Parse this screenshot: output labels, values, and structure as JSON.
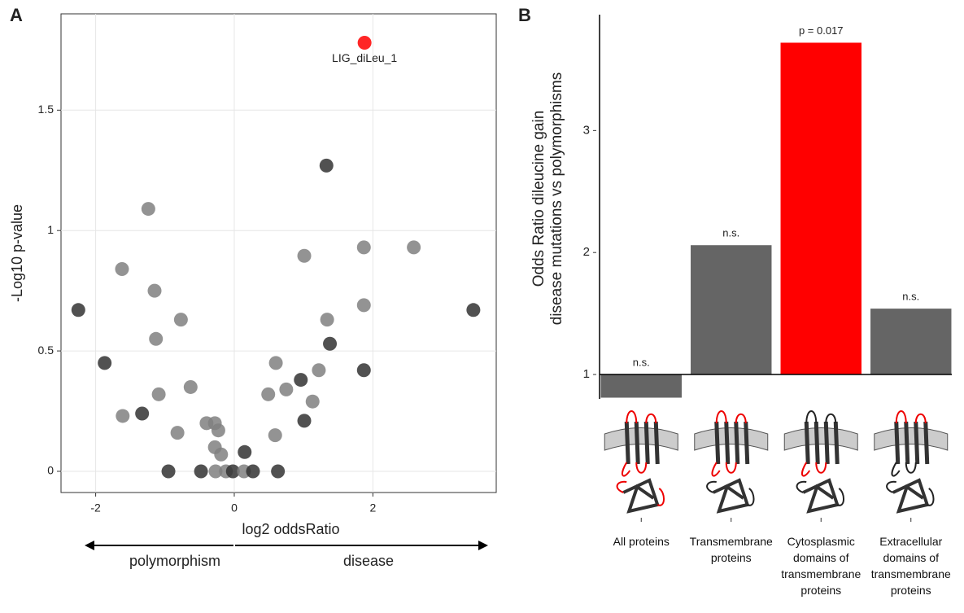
{
  "chart_data": [
    {
      "type": "scatter",
      "panel": "A",
      "xlabel": "log2 oddsRatio",
      "ylabel": "-Log10 p-value",
      "annotation": "LIG_diLeu_1",
      "arrow_left": "polymorphism",
      "arrow_right": "disease",
      "x": [
        1.88,
        1.33,
        -1.24,
        1.01,
        1.87,
        2.59,
        -1.62,
        -1.15,
        1.87,
        -2.25,
        3.45,
        -0.77,
        1.34,
        -1.13,
        1.38,
        -1.87,
        0.6,
        1.87,
        1.22,
        0.96,
        -0.63,
        0.75,
        0.49,
        -1.09,
        1.13,
        -1.61,
        -1.33,
        1.01,
        -0.4,
        -0.28,
        -0.23,
        -0.82,
        0.59,
        -0.28,
        -0.19,
        0.15,
        -0.95,
        -0.48,
        -0.27,
        -0.12,
        -0.02,
        0.14,
        0.27,
        0.63
      ],
      "y": [
        1.78,
        1.27,
        1.09,
        0.895,
        0.93,
        0.93,
        0.84,
        0.75,
        0.69,
        0.67,
        0.67,
        0.63,
        0.63,
        0.55,
        0.53,
        0.45,
        0.45,
        0.42,
        0.42,
        0.38,
        0.35,
        0.34,
        0.32,
        0.32,
        0.29,
        0.23,
        0.24,
        0.21,
        0.2,
        0.2,
        0.17,
        0.16,
        0.15,
        0.1,
        0.07,
        0.08,
        0,
        0,
        0,
        0,
        0,
        0,
        0,
        0
      ],
      "colors": [
        "#ff0000",
        "#333333",
        "#808080",
        "#808080",
        "#808080",
        "#808080",
        "#808080",
        "#808080",
        "#808080",
        "#333333",
        "#333333",
        "#808080",
        "#808080",
        "#808080",
        "#333333",
        "#333333",
        "#808080",
        "#333333",
        "#808080",
        "#333333",
        "#808080",
        "#808080",
        "#808080",
        "#808080",
        "#808080",
        "#808080",
        "#333333",
        "#333333",
        "#808080",
        "#808080",
        "#808080",
        "#808080",
        "#808080",
        "#808080",
        "#808080",
        "#333333",
        "#333333",
        "#333333",
        "#808080",
        "#808080",
        "#333333",
        "#808080",
        "#333333",
        "#333333"
      ],
      "xlim": [
        -2.5,
        3.78
      ],
      "ylim": [
        -0.088,
        1.9
      ],
      "xticks": [
        -2,
        0,
        2
      ],
      "yticks": [
        0,
        0.5,
        1,
        1.5
      ],
      "grid": true
    },
    {
      "type": "bar",
      "panel": "B",
      "ylabel": [
        "Odds Ratio dileucine gain",
        "disease mutations vs polymorphisms"
      ],
      "categories": [
        "All proteins",
        "Transmembrane proteins",
        "Cytosplasmic domains of transmembrane proteins",
        "Extracellular domains of transmembrane proteins"
      ],
      "values": [
        0.81,
        2.06,
        3.72,
        1.54
      ],
      "annotations": [
        "n.s.",
        "n.s.",
        "p = 0.017",
        "n.s."
      ],
      "colors": [
        "#656565",
        "#656565",
        "#ff0000",
        "#656565"
      ],
      "baseline": 1,
      "ylim": [
        0.8,
        3.95
      ],
      "yticks": [
        1,
        2,
        3
      ]
    }
  ]
}
